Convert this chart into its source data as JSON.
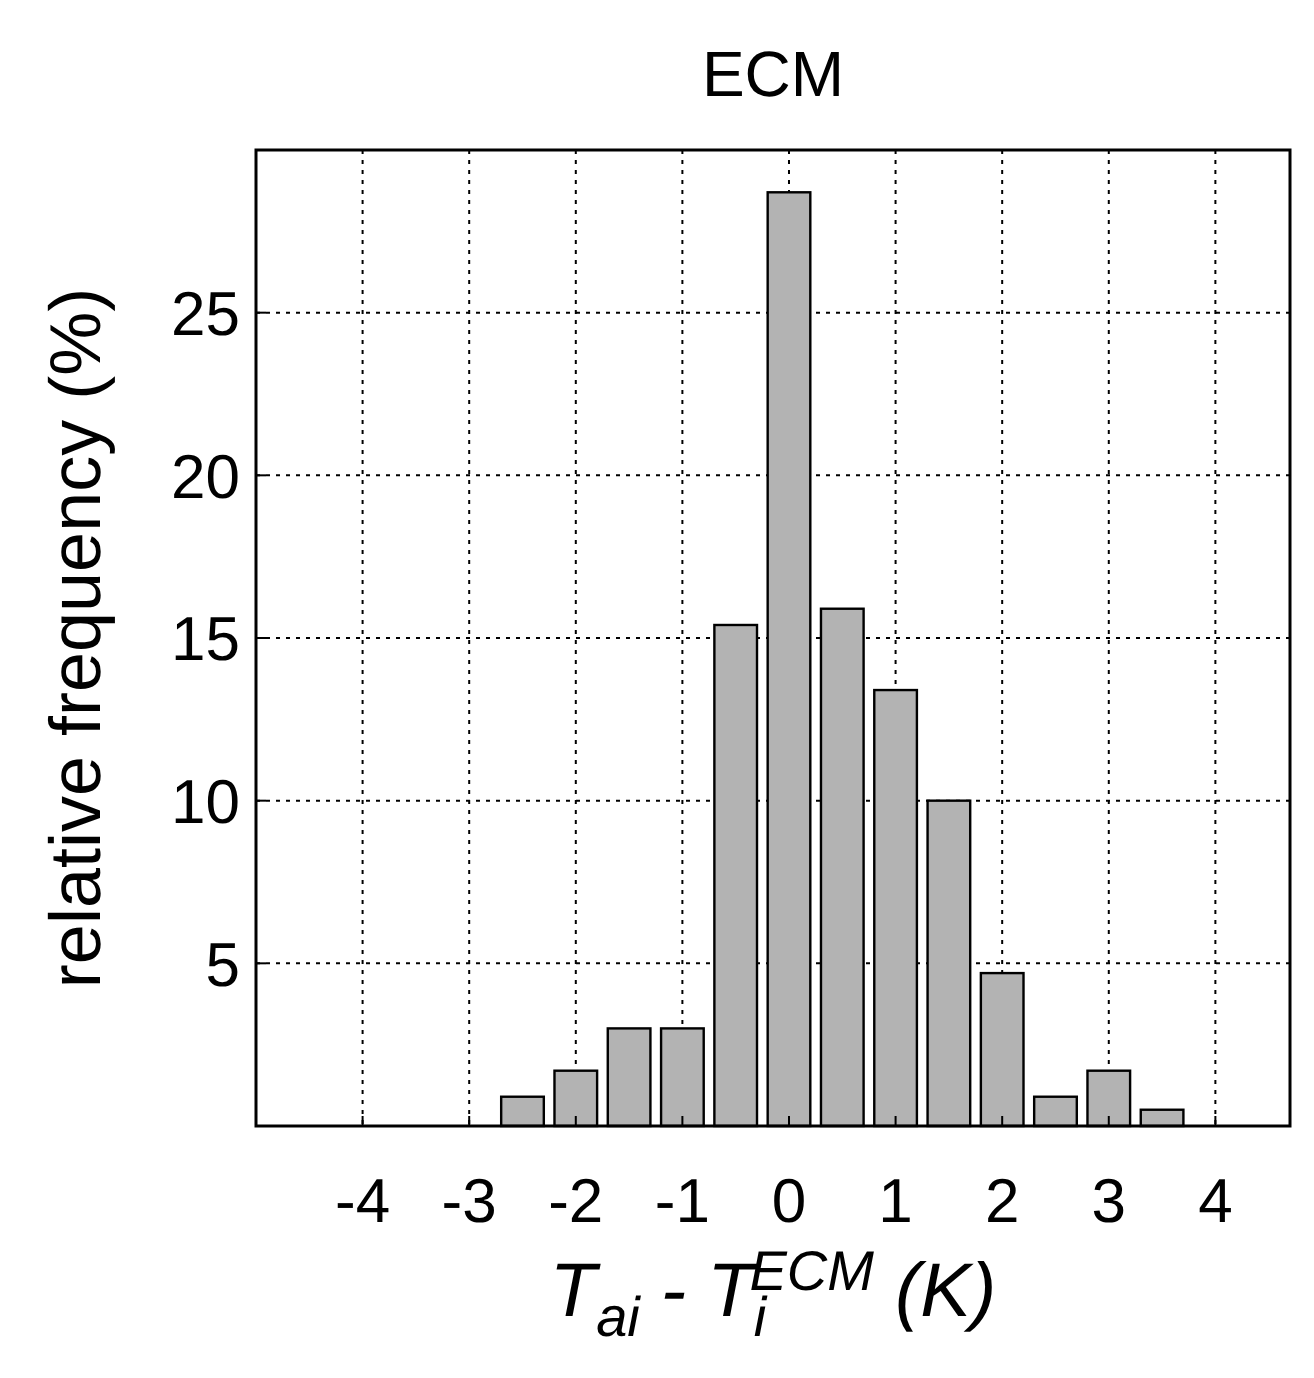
{
  "chart_data": {
    "type": "histogram",
    "title": "ECM",
    "xlabel": "T$_{ai}$ - T$_{i}$$^{ECM}$ (K)",
    "ylabel": "relative frequency (%)",
    "bins": [
      -2.75,
      -2.25,
      -1.75,
      -1.25,
      -0.75,
      -0.25,
      0.25,
      0.75,
      1.25,
      1.75,
      2.25,
      2.75,
      3.25,
      3.75
    ],
    "values": [
      0.9,
      1.7,
      3.0,
      3.0,
      15.4,
      28.7,
      15.9,
      13.4,
      10.0,
      4.7,
      0.9,
      1.7,
      0.5
    ],
    "color": "#b3b3b3",
    "xlim": [
      -5,
      4.7
    ],
    "xticks": [
      -4,
      -3,
      -2,
      -1,
      0,
      1,
      2,
      3,
      4
    ],
    "ylim": [
      0,
      30
    ],
    "yticks": [
      5,
      10,
      15,
      20,
      25
    ],
    "grid": true
  }
}
